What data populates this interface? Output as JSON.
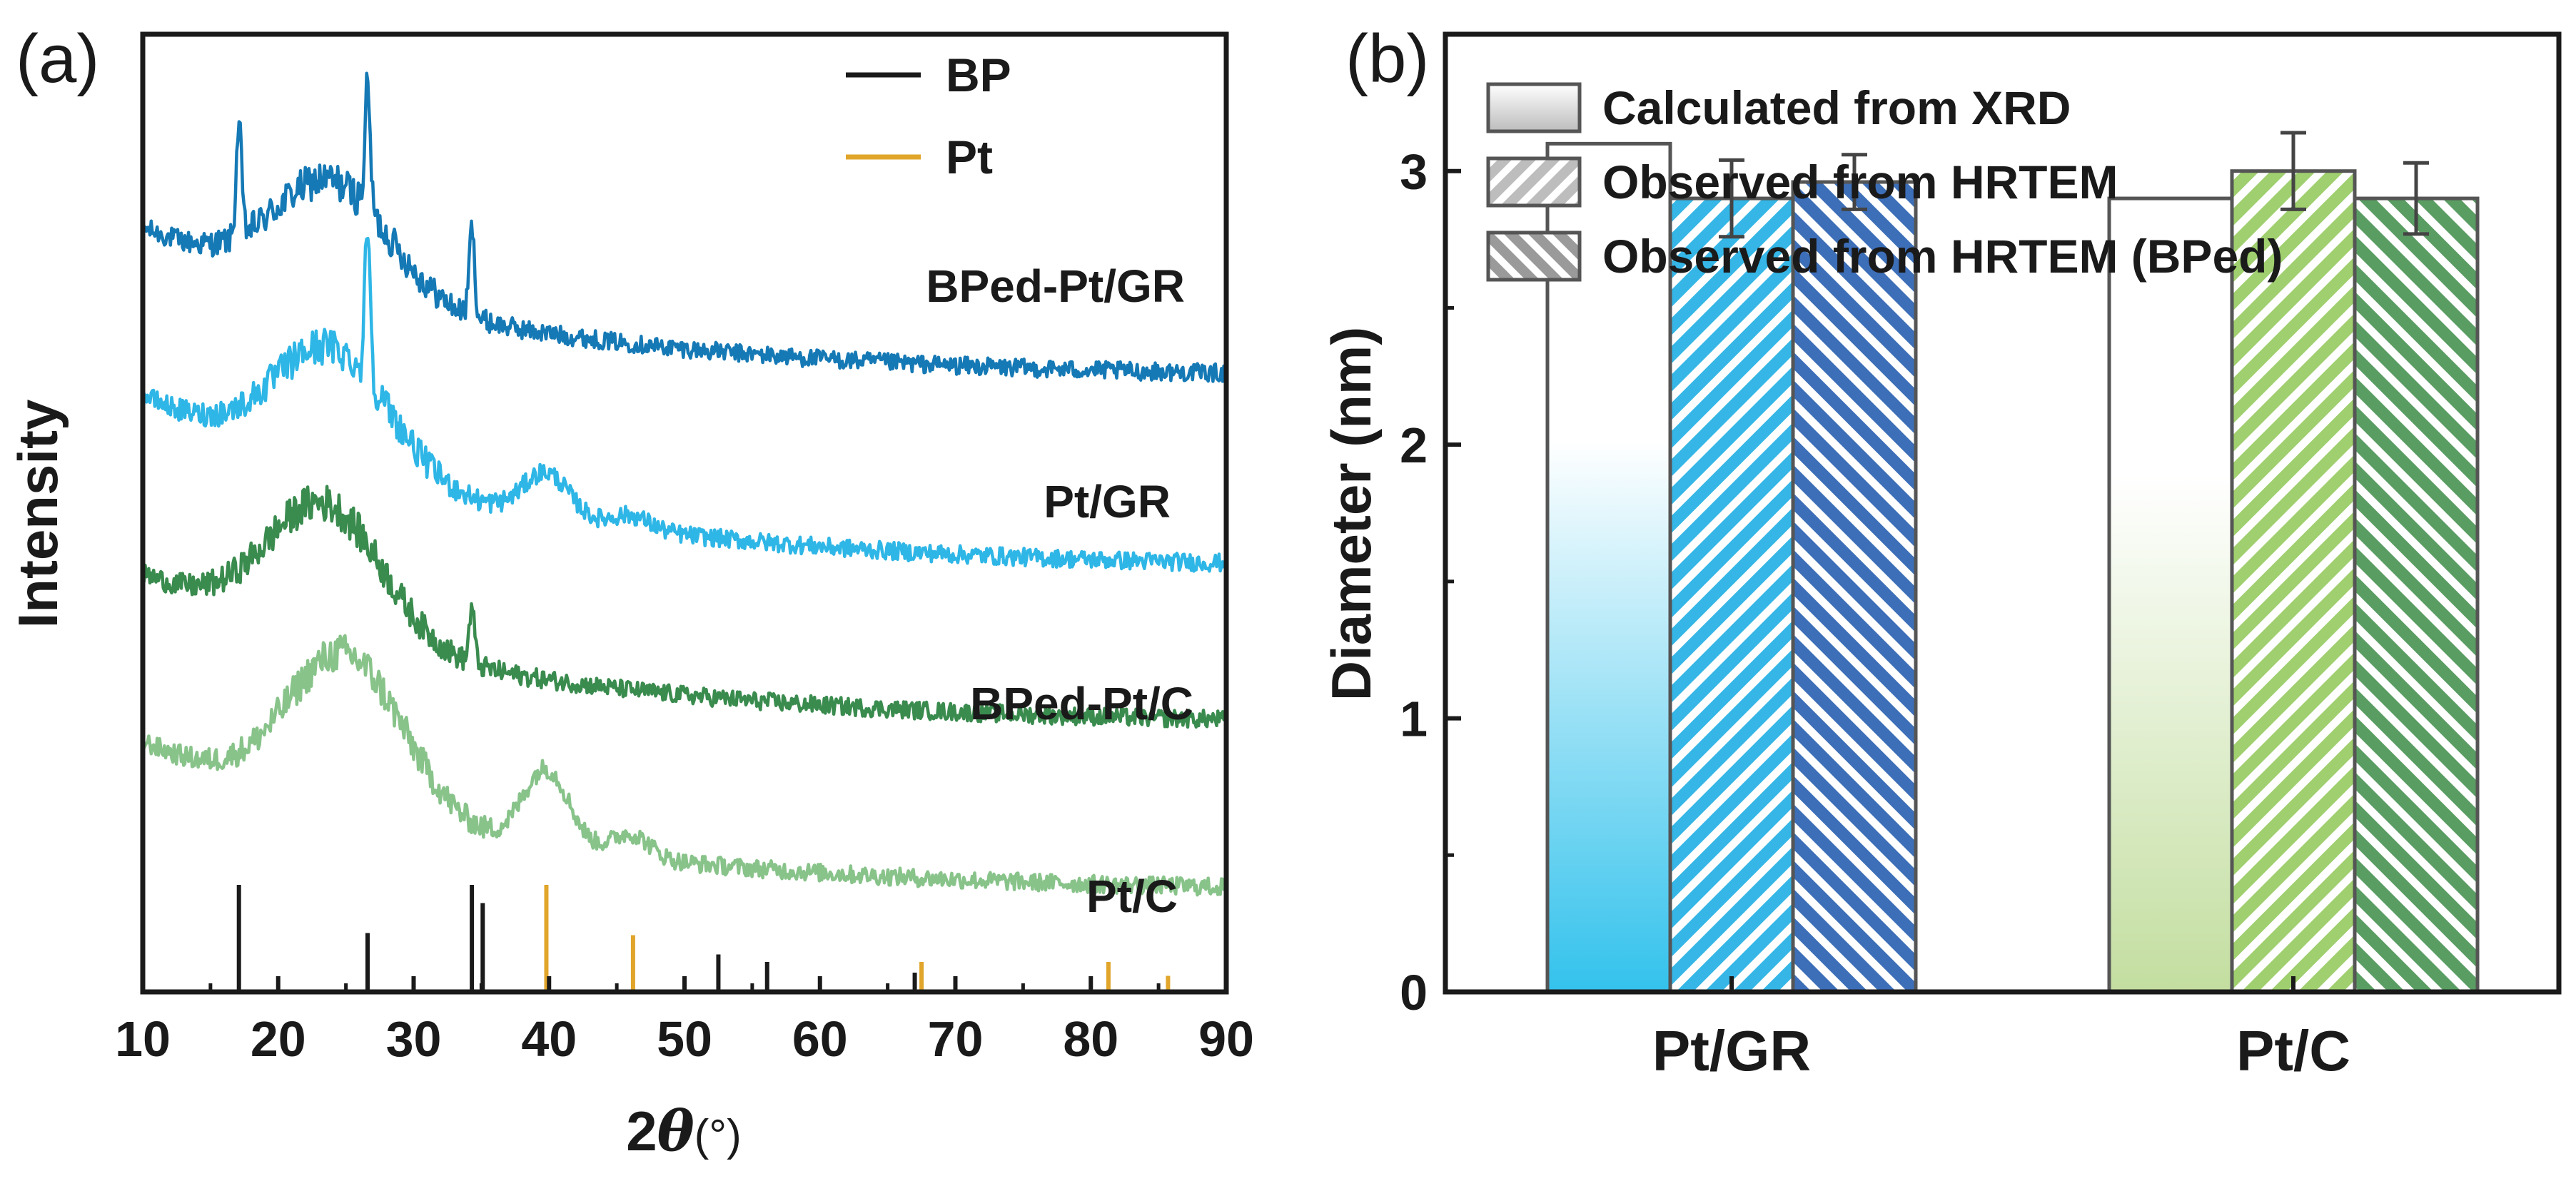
{
  "chart_data": [
    {
      "panel": "(a)",
      "type": "line",
      "xlabel_main": "2",
      "xlabel_theta": "θ",
      "xlabel_unit": "(°)",
      "ylabel": "Intensity",
      "xlim": [
        10,
        90
      ],
      "x_ticks": [
        "10",
        "20",
        "30",
        "40",
        "50",
        "60",
        "70",
        "80",
        "90"
      ],
      "series": [
        {
          "name": "BPed-Pt/GR",
          "color": "#1579b5",
          "baseline_start": 3.1,
          "baseline_end": 2.45,
          "hump_center": 24,
          "hump_width": 6,
          "hump_height": 0.5,
          "peaks": [
            {
              "x": 17.1,
              "h": 0.5
            },
            {
              "x": 26.6,
              "h": 0.55
            },
            {
              "x": 34.3,
              "h": 0.4
            }
          ],
          "pt_shoulder": 0.0
        },
        {
          "name": "Pt/GR",
          "color": "#2eb6e6",
          "baseline_start": 2.35,
          "baseline_end": 1.6,
          "hump_center": 24,
          "hump_width": 6,
          "hump_height": 0.55,
          "peaks": [
            {
              "x": 26.6,
              "h": 0.7
            }
          ],
          "pt_shoulder": 0.2
        },
        {
          "name": "BPed-Pt/C",
          "color": "#3a8b4e",
          "baseline_start": 1.55,
          "baseline_end": 0.9,
          "hump_center": 23.5,
          "hump_width": 6,
          "hump_height": 0.6,
          "peaks": [
            {
              "x": 34.3,
              "h": 0.25
            }
          ],
          "pt_shoulder": 0.0
        },
        {
          "name": "Pt/C",
          "color": "#88c38a",
          "baseline_start": 0.8,
          "baseline_end": 0.15,
          "hump_center": 25,
          "hump_width": 6,
          "hump_height": 0.7,
          "peaks": [],
          "pt_shoulder": 0.35
        }
      ],
      "reference_legend": [
        {
          "name": "BP",
          "color": "#1a1a1a"
        },
        {
          "name": "Pt",
          "color": "#e0a52a"
        }
      ],
      "reference_lines": {
        "BP": [
          {
            "x": 17.1,
            "h": 1.0
          },
          {
            "x": 26.6,
            "h": 0.55
          },
          {
            "x": 34.3,
            "h": 1.0
          },
          {
            "x": 35.1,
            "h": 0.83
          },
          {
            "x": 52.5,
            "h": 0.35
          },
          {
            "x": 56.1,
            "h": 0.28
          },
          {
            "x": 67.0,
            "h": 0.18
          }
        ],
        "Pt": [
          {
            "x": 39.8,
            "h": 1.0
          },
          {
            "x": 46.2,
            "h": 0.53
          },
          {
            "x": 67.5,
            "h": 0.28
          },
          {
            "x": 81.3,
            "h": 0.28
          },
          {
            "x": 85.7,
            "h": 0.15
          }
        ]
      }
    },
    {
      "panel": "(b)",
      "type": "bar",
      "ylabel": "Diameter (nm)",
      "ylim": [
        0,
        3.5
      ],
      "y_ticks": [
        "0",
        "1",
        "2",
        "3"
      ],
      "categories": [
        "Pt/GR",
        "Pt/C"
      ],
      "series": [
        {
          "name": "Calculated from XRD",
          "values": [
            3.1,
            2.9
          ],
          "errors": [
            0,
            0
          ],
          "pattern": "gradient"
        },
        {
          "name": "Observed from HRTEM",
          "values": [
            2.9,
            3.0
          ],
          "errors": [
            0.14,
            0.14
          ],
          "pattern": "hatch-forward"
        },
        {
          "name": "Observed from HRTEM (BPed)",
          "values": [
            2.96,
            2.9
          ],
          "errors": [
            0.1,
            0.13
          ],
          "pattern": "hatch-back"
        }
      ],
      "bar_colors": {
        "Pt/GR": [
          "#3fc5ec",
          "#35b6e6",
          "#3d6fb8"
        ],
        "Pt/C": [
          "#c5e0a4",
          "#9fcf6e",
          "#5a9d63"
        ]
      }
    }
  ]
}
